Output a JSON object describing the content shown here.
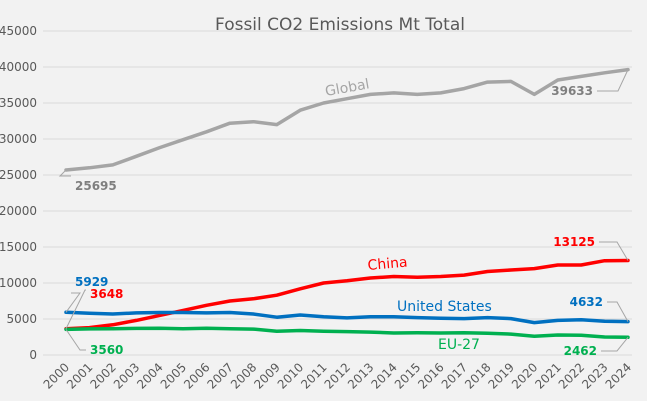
{
  "chart_data": {
    "type": "line",
    "title": "Fossil CO2 Emissions Mt Total",
    "xlabel": "",
    "ylabel": "",
    "ylim": [
      0,
      45000
    ],
    "yticks": [
      0,
      5000,
      10000,
      15000,
      20000,
      25000,
      30000,
      35000,
      40000,
      45000
    ],
    "grid": true,
    "legend": "none (inline series labels)",
    "categories": [
      "2000",
      "2001",
      "2002",
      "2003",
      "2004",
      "2005",
      "2006",
      "2007",
      "2008",
      "2009",
      "2010",
      "2011",
      "2012",
      "2013",
      "2014",
      "2015",
      "2016",
      "2017",
      "2018",
      "2019",
      "2020",
      "2021",
      "2022",
      "2023",
      "2024"
    ],
    "series": [
      {
        "name": "Global",
        "color": "#a5a5a5",
        "values": [
          25695,
          26000,
          26400,
          27600,
          28800,
          29900,
          31000,
          32200,
          32400,
          32000,
          34000,
          35000,
          35600,
          36200,
          36400,
          36200,
          36400,
          37000,
          37900,
          38000,
          36200,
          38200,
          38700,
          39200,
          39633
        ],
        "label_first": "25695",
        "label_last": "39633"
      },
      {
        "name": "China",
        "color": "#ff0000",
        "values": [
          3648,
          3800,
          4200,
          4800,
          5500,
          6200,
          6900,
          7500,
          7800,
          8300,
          9200,
          10000,
          10300,
          10700,
          10900,
          10800,
          10900,
          11100,
          11600,
          11800,
          12000,
          12500,
          12500,
          13100,
          13125
        ],
        "label_first": "3648",
        "label_last": "13125"
      },
      {
        "name": "United States",
        "color": "#0070c0",
        "values": [
          5929,
          5800,
          5700,
          5850,
          5900,
          5900,
          5850,
          5900,
          5700,
          5250,
          5550,
          5300,
          5150,
          5300,
          5300,
          5200,
          5100,
          5050,
          5200,
          5050,
          4500,
          4800,
          4900,
          4700,
          4632
        ],
        "label_first": "5929",
        "label_last": "4632"
      },
      {
        "name": "EU-27",
        "color": "#00b050",
        "values": [
          3560,
          3620,
          3640,
          3700,
          3720,
          3650,
          3720,
          3650,
          3600,
          3300,
          3400,
          3300,
          3250,
          3180,
          3050,
          3080,
          3060,
          3080,
          3020,
          2900,
          2600,
          2780,
          2750,
          2500,
          2462
        ],
        "label_first": "3560",
        "label_last": "2462"
      }
    ]
  }
}
